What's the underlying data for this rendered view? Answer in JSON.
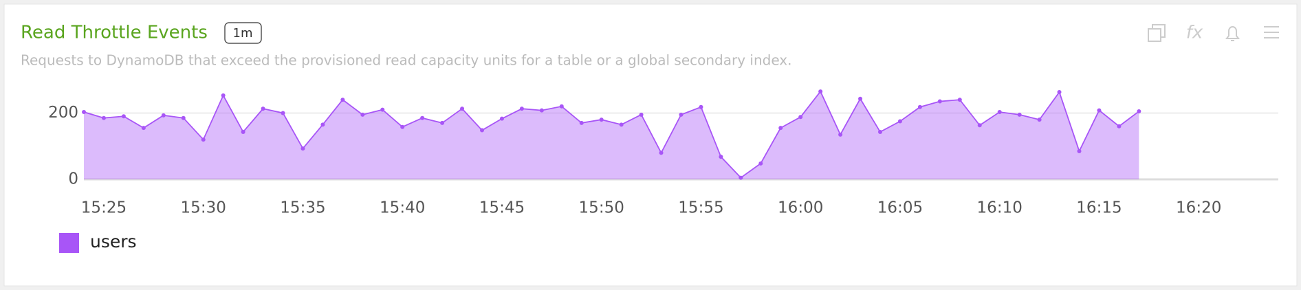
{
  "chart_data": {
    "type": "area",
    "title": "Read Throttle Events",
    "badge": "1m",
    "subtitle": "Requests to DynamoDB that exceed the provisioned read capacity units for a table or a global secondary index.",
    "x": [
      "15:24",
      "15:25",
      "15:26",
      "15:27",
      "15:28",
      "15:29",
      "15:30",
      "15:31",
      "15:32",
      "15:33",
      "15:34",
      "15:35",
      "15:36",
      "15:37",
      "15:38",
      "15:39",
      "15:40",
      "15:41",
      "15:42",
      "15:43",
      "15:44",
      "15:45",
      "15:46",
      "15:47",
      "15:48",
      "15:49",
      "15:50",
      "15:51",
      "15:52",
      "15:53",
      "15:54",
      "15:55",
      "15:56",
      "15:57",
      "15:58",
      "15:59",
      "16:00",
      "16:01",
      "16:02",
      "16:03",
      "16:04",
      "16:05",
      "16:06",
      "16:07",
      "16:08",
      "16:09",
      "16:10",
      "16:11",
      "16:12",
      "16:13",
      "16:14",
      "16:15",
      "16:16",
      "16:17"
    ],
    "series": [
      {
        "name": "users",
        "color": "#a855f7",
        "values": [
          203,
          185,
          190,
          155,
          193,
          185,
          120,
          253,
          143,
          213,
          200,
          93,
          165,
          240,
          195,
          210,
          158,
          185,
          170,
          213,
          148,
          183,
          213,
          208,
          220,
          170,
          180,
          165,
          195,
          80,
          195,
          218,
          68,
          5,
          48,
          155,
          188,
          265,
          135,
          243,
          143,
          175,
          218,
          235,
          240,
          163,
          203,
          195,
          180,
          263,
          85,
          208,
          160,
          205
        ]
      }
    ],
    "xlim": [
      "15:24",
      "16:24"
    ],
    "xticks": [
      "15:25",
      "15:30",
      "15:35",
      "15:40",
      "15:45",
      "15:50",
      "15:55",
      "16:00",
      "16:05",
      "16:10",
      "16:15",
      "16:20"
    ],
    "ylim": [
      0,
      290
    ],
    "yticks": [
      0,
      200
    ],
    "grid": true
  }
}
